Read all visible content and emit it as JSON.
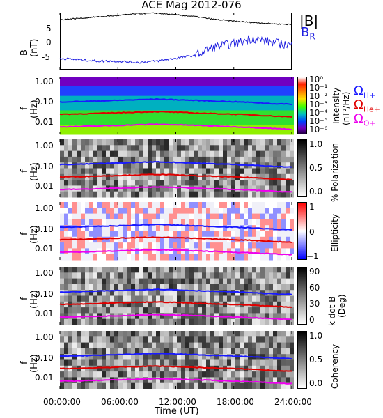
{
  "title": "ACE Mag 2012-076",
  "x_axis": {
    "label": "Time (UT)",
    "ticks": [
      "00:00:00",
      "06:00:00",
      "12:00:00",
      "18:00:00",
      "24:00:00"
    ]
  },
  "legend": {
    "b_total": "|B|",
    "b_r_main": "B",
    "b_r_sub": "R",
    "omega": "Ω",
    "h_sub": "H+",
    "he_sub": "He+",
    "o_sub": "O+"
  },
  "colors": {
    "b_total": "#000000",
    "b_r": "#1f1fe0",
    "h_plus": "#1a1aff",
    "he_plus": "#e00000",
    "o_plus": "#ee00ee"
  },
  "panels": [
    {
      "id": "b",
      "ylabel_main": "B",
      "ylabel_unit": "(nT)",
      "yticks": [
        "5",
        "0",
        "-5"
      ]
    },
    {
      "id": "intensity",
      "ylabel_main": "f",
      "ylabel_unit": "(Hz)",
      "yticks": [
        "1.00",
        "0.10",
        "0.01"
      ],
      "cbar_title": "Intensity",
      "cbar_unit": "(nT²/Hz)",
      "cbar_ticks": [
        "10⁰",
        "10⁻¹",
        "10⁻²",
        "10⁻³",
        "10⁻⁴",
        "10⁻⁵",
        "10⁻⁶"
      ],
      "colormap": "rainbow"
    },
    {
      "id": "polarization",
      "ylabel_main": "f",
      "ylabel_unit": "(Hz)",
      "yticks": [
        "1.00",
        "0.10",
        "0.01"
      ],
      "cbar_title": "% Polarization",
      "cbar_ticks": [
        "1.0",
        "0.5",
        "0.0"
      ],
      "colormap": "gray"
    },
    {
      "id": "ellipticity",
      "ylabel_main": "f",
      "ylabel_unit": "(Hz)",
      "yticks": [
        "1.00",
        "0.10",
        "0.01"
      ],
      "cbar_title": "Ellipticity",
      "cbar_ticks": [
        "1",
        "0",
        "−1"
      ],
      "colormap": "blue-white-red"
    },
    {
      "id": "kdotb",
      "ylabel_main": "f",
      "ylabel_unit": "(Hz)",
      "yticks": [
        "1.00",
        "0.10",
        "0.01"
      ],
      "cbar_title": "k dot B",
      "cbar_unit": "(Deg)",
      "cbar_ticks": [
        "90",
        "60",
        "30",
        "0"
      ],
      "colormap": "gray"
    },
    {
      "id": "coherency",
      "ylabel_main": "f",
      "ylabel_unit": "(Hz)",
      "yticks": [
        "1.00",
        "0.10",
        "0.01"
      ],
      "cbar_title": "Coherency",
      "cbar_ticks": [
        "1.0",
        "0.5",
        "0.0"
      ],
      "colormap": "gray"
    }
  ],
  "chart_data": [
    {
      "type": "line",
      "x": [
        0,
        2,
        4,
        6,
        8,
        10,
        12,
        14,
        16,
        18,
        20,
        22,
        24
      ],
      "xlim": [
        0,
        24
      ],
      "ylim": [
        -10,
        10
      ],
      "series": [
        {
          "name": "|B|",
          "values": [
            7.5,
            8.0,
            8.5,
            9.0,
            9.6,
            9.8,
            9.2,
            8.6,
            7.6,
            7.0,
            6.5,
            6.1,
            5.8
          ]
        },
        {
          "name": "BR",
          "values": [
            -6.0,
            -6.5,
            -7.0,
            -7.0,
            -7.5,
            -7.0,
            -6.0,
            -5.0,
            -2.0,
            -1.0,
            1.0,
            -0.5,
            -1.5
          ]
        }
      ]
    },
    {
      "type": "line",
      "x": [
        0,
        2,
        4,
        6,
        8,
        10,
        12,
        14,
        16,
        18,
        20,
        22,
        24
      ],
      "xlim": [
        0,
        24
      ],
      "ylim": [
        0.003,
        1.8
      ],
      "yscale": "log",
      "series": [
        {
          "name": "ΩH+",
          "values": [
            0.11,
            0.115,
            0.122,
            0.13,
            0.14,
            0.15,
            0.14,
            0.13,
            0.12,
            0.112,
            0.103,
            0.09,
            0.085
          ]
        },
        {
          "name": "ΩHe+",
          "values": [
            0.028,
            0.029,
            0.031,
            0.033,
            0.035,
            0.037,
            0.035,
            0.032,
            0.03,
            0.028,
            0.026,
            0.023,
            0.021
          ]
        },
        {
          "name": "ΩO+",
          "values": [
            0.007,
            0.0072,
            0.0076,
            0.0081,
            0.0087,
            0.0092,
            0.0088,
            0.0082,
            0.0076,
            0.007,
            0.0065,
            0.0058,
            0.0053
          ]
        }
      ]
    }
  ]
}
